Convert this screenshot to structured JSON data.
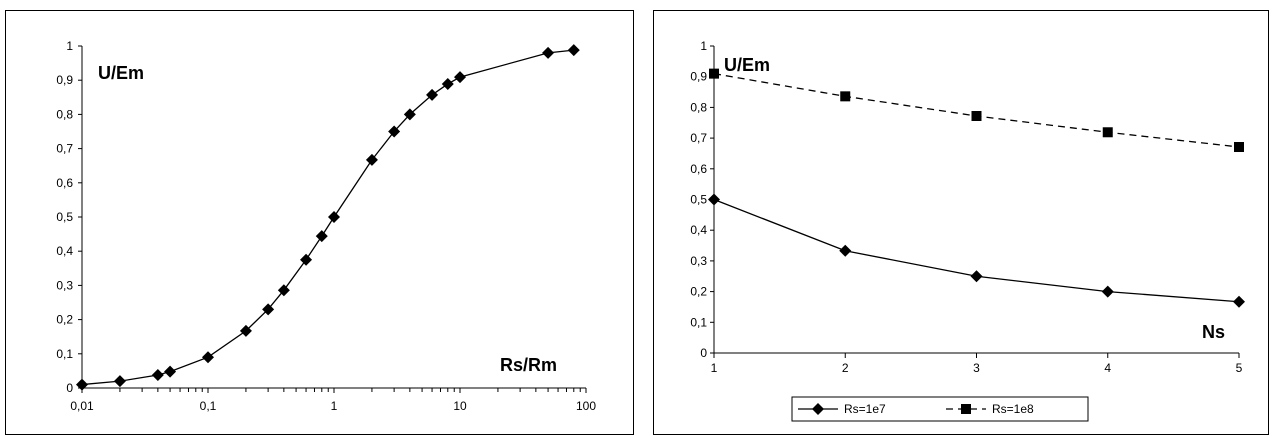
{
  "chart_data": [
    {
      "type": "scatter",
      "xscale": "log",
      "xlim": [
        0.01,
        100
      ],
      "ylim": [
        0,
        1
      ],
      "grid": false,
      "legend": "none",
      "xticks": [
        "0,01",
        "0,1",
        "1",
        "10",
        "100"
      ],
      "yticks": [
        "0",
        "0,1",
        "0,2",
        "0,3",
        "0,4",
        "0,5",
        "0,6",
        "0,7",
        "0,8",
        "0,9",
        "1"
      ],
      "ylabel": "U/Em",
      "xlabel": "Rs/Rm",
      "series": [
        {
          "marker": "diamond",
          "line": "solid",
          "color": "#000000",
          "points": [
            [
              0.01,
              0.01
            ],
            [
              0.02,
              0.02
            ],
            [
              0.04,
              0.038
            ],
            [
              0.05,
              0.048
            ],
            [
              0.1,
              0.09
            ],
            [
              0.2,
              0.167
            ],
            [
              0.3,
              0.23
            ],
            [
              0.4,
              0.286
            ],
            [
              0.6,
              0.375
            ],
            [
              0.8,
              0.444
            ],
            [
              1,
              0.5
            ],
            [
              2,
              0.667
            ],
            [
              3,
              0.75
            ],
            [
              4,
              0.8
            ],
            [
              6,
              0.857
            ],
            [
              8,
              0.889
            ],
            [
              10,
              0.909
            ],
            [
              50,
              0.98
            ],
            [
              80,
              0.988
            ]
          ]
        }
      ]
    },
    {
      "type": "line",
      "xlim": [
        1,
        5
      ],
      "ylim": [
        0,
        1
      ],
      "grid": false,
      "legend": "bottom",
      "xticks": [
        "1",
        "2",
        "3",
        "4",
        "5"
      ],
      "yticks": [
        "0",
        "0,1",
        "0,2",
        "0,3",
        "0,4",
        "0,5",
        "0,6",
        "0,7",
        "0,8",
        "0,9",
        "1"
      ],
      "ylabel": "U/Em",
      "xlabel": "Ns",
      "series": [
        {
          "name": "Rs=1e7",
          "marker": "diamond",
          "line": "solid",
          "color": "#000000",
          "points": [
            [
              1,
              0.5
            ],
            [
              2,
              0.333
            ],
            [
              3,
              0.25
            ],
            [
              4,
              0.2
            ],
            [
              5,
              0.167
            ]
          ]
        },
        {
          "name": "Rs=1e8",
          "marker": "square",
          "line": "dashed",
          "color": "#000000",
          "points": [
            [
              1,
              0.91
            ],
            [
              2,
              0.836
            ],
            [
              3,
              0.772
            ],
            [
              4,
              0.719
            ],
            [
              5,
              0.671
            ]
          ]
        }
      ]
    }
  ]
}
